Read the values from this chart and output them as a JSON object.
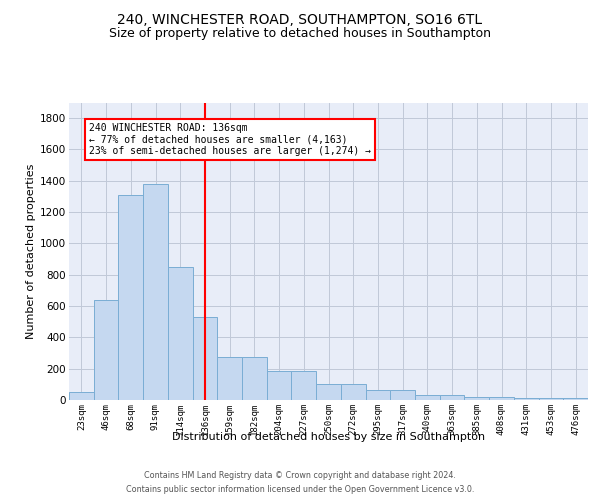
{
  "title1": "240, WINCHESTER ROAD, SOUTHAMPTON, SO16 6TL",
  "title2": "Size of property relative to detached houses in Southampton",
  "xlabel": "Distribution of detached houses by size in Southampton",
  "ylabel": "Number of detached properties",
  "categories": [
    "23sqm",
    "46sqm",
    "68sqm",
    "91sqm",
    "114sqm",
    "136sqm",
    "159sqm",
    "182sqm",
    "204sqm",
    "227sqm",
    "250sqm",
    "272sqm",
    "295sqm",
    "317sqm",
    "340sqm",
    "363sqm",
    "385sqm",
    "408sqm",
    "431sqm",
    "453sqm",
    "476sqm"
  ],
  "bar_values": [
    50,
    640,
    1310,
    1380,
    850,
    530,
    275,
    275,
    185,
    185,
    105,
    105,
    65,
    65,
    35,
    35,
    20,
    20,
    14,
    14,
    14
  ],
  "bar_color": "#c5d8f0",
  "bar_edge_color": "#7aadd4",
  "vline_color": "red",
  "vline_idx": 5,
  "annotation_line1": "240 WINCHESTER ROAD: 136sqm",
  "annotation_line2": "← 77% of detached houses are smaller (4,163)",
  "annotation_line3": "23% of semi-detached houses are larger (1,274) →",
  "ylim": [
    0,
    1900
  ],
  "yticks": [
    0,
    200,
    400,
    600,
    800,
    1000,
    1200,
    1400,
    1600,
    1800
  ],
  "bg_color": "#e8edf8",
  "grid_color": "#c0c8d8",
  "title1_fontsize": 10,
  "title2_fontsize": 9,
  "footer1": "Contains HM Land Registry data © Crown copyright and database right 2024.",
  "footer2": "Contains public sector information licensed under the Open Government Licence v3.0."
}
